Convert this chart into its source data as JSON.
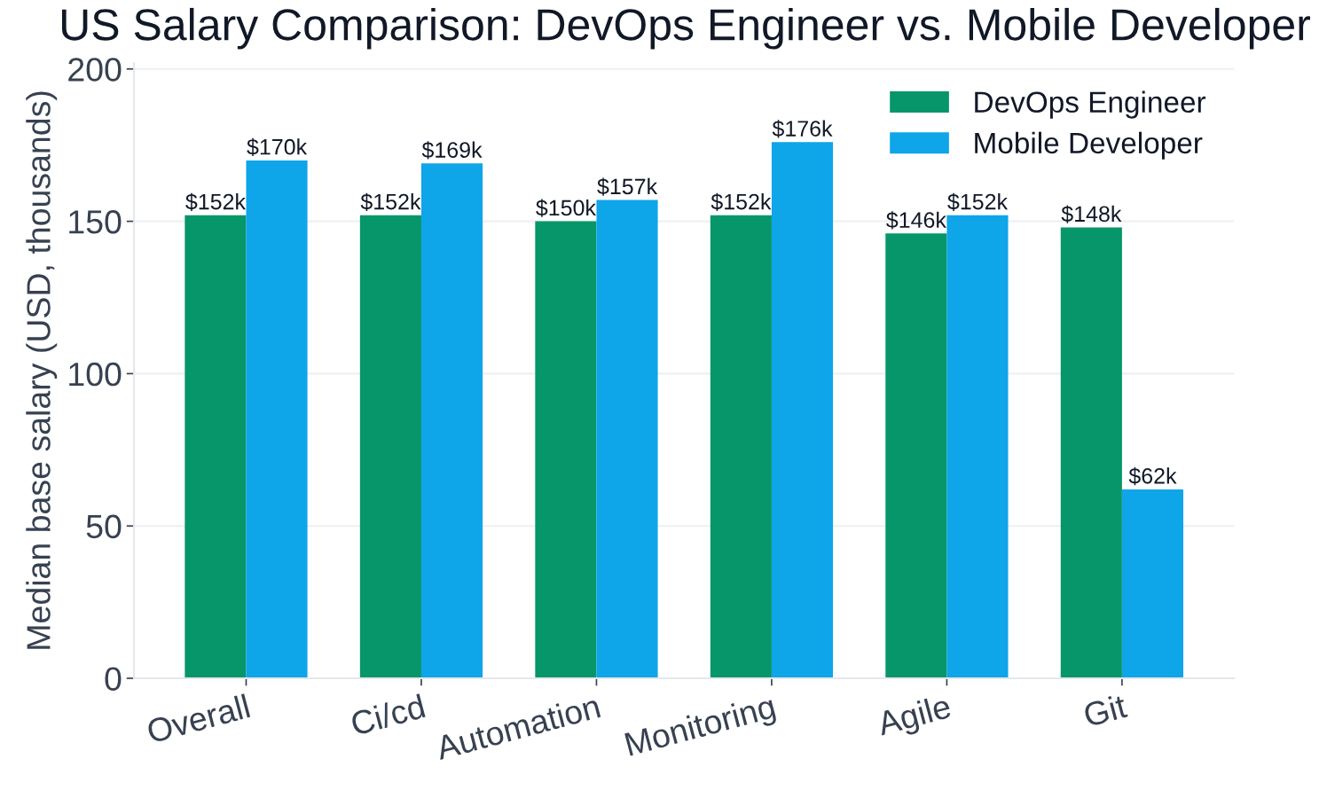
{
  "chart_data": {
    "type": "bar",
    "title": "US Salary Comparison: DevOps Engineer vs. Mobile Developer",
    "ylabel": "Median base salary (USD, thousands)",
    "categories": [
      "Overall",
      "Ci/cd",
      "Automation",
      "Monitoring",
      "Agile",
      "Git"
    ],
    "series": [
      {
        "name": "DevOps Engineer",
        "color": "#079669",
        "values": [
          152,
          152,
          150,
          152,
          146,
          148
        ],
        "value_labels": [
          "$152k",
          "$152k",
          "$150k",
          "$152k",
          "$146k",
          "$148k"
        ]
      },
      {
        "name": "Mobile Developer",
        "color": "#0fa5e9",
        "values": [
          170,
          169,
          157,
          176,
          152,
          62
        ],
        "value_labels": [
          "$170k",
          "$169k",
          "$157k",
          "$176k",
          "$152k",
          "$62k"
        ]
      }
    ],
    "ylim": [
      0,
      202
    ],
    "yticks": [
      0,
      50,
      100,
      150,
      200
    ],
    "grid": "y",
    "legend": "top right"
  }
}
